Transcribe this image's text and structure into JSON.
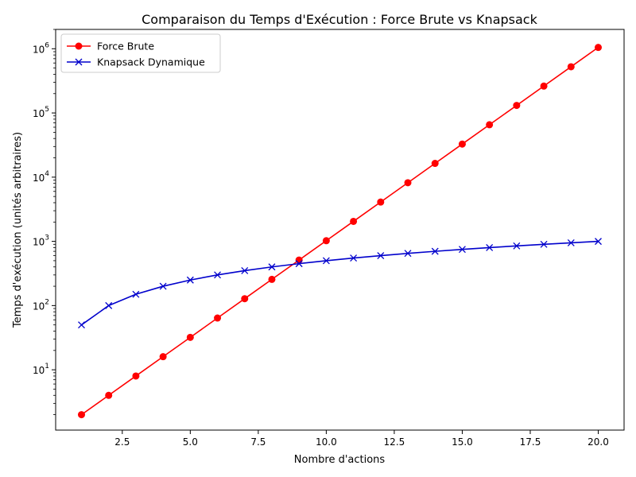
{
  "chart_data": {
    "type": "line",
    "title": "Comparaison du Temps d'Exécution : Force Brute vs Knapsack",
    "xlabel": "Nombre d'actions",
    "ylabel": "Temps d'exécution (unités arbitraires)",
    "xlim": [
      0.05,
      20.95
    ],
    "ylim": [
      1.15,
      2000000
    ],
    "yscale": "log",
    "xticks": [
      2.5,
      5.0,
      7.5,
      10.0,
      12.5,
      15.0,
      17.5,
      20.0
    ],
    "xtick_labels": [
      "2.5",
      "5.0",
      "7.5",
      "10.0",
      "12.5",
      "15.0",
      "17.5",
      "20.0"
    ],
    "yticks": [
      {
        "base": "10",
        "exp": "1",
        "value": 10
      },
      {
        "base": "10",
        "exp": "2",
        "value": 100
      },
      {
        "base": "10",
        "exp": "3",
        "value": 1000
      },
      {
        "base": "10",
        "exp": "4",
        "value": 10000
      },
      {
        "base": "10",
        "exp": "5",
        "value": 100000
      },
      {
        "base": "10",
        "exp": "6",
        "value": 1000000
      }
    ],
    "grid": false,
    "legend": "top-left",
    "x": [
      1,
      2,
      3,
      4,
      5,
      6,
      7,
      8,
      9,
      10,
      11,
      12,
      13,
      14,
      15,
      16,
      17,
      18,
      19,
      20
    ],
    "series": [
      {
        "name": "Force Brute",
        "color": "#ff0000",
        "marker": "circle",
        "values": [
          2,
          4,
          8,
          16,
          32,
          64,
          128,
          256,
          512,
          1024,
          2048,
          4096,
          8192,
          16384,
          32768,
          65536,
          131072,
          262144,
          524288,
          1048576
        ]
      },
      {
        "name": "Knapsack Dynamique",
        "color": "#0000cc",
        "marker": "x",
        "values": [
          50,
          100,
          150,
          200,
          250,
          300,
          350,
          400,
          450,
          500,
          550,
          600,
          650,
          700,
          750,
          800,
          850,
          900,
          950,
          1000
        ]
      }
    ]
  }
}
